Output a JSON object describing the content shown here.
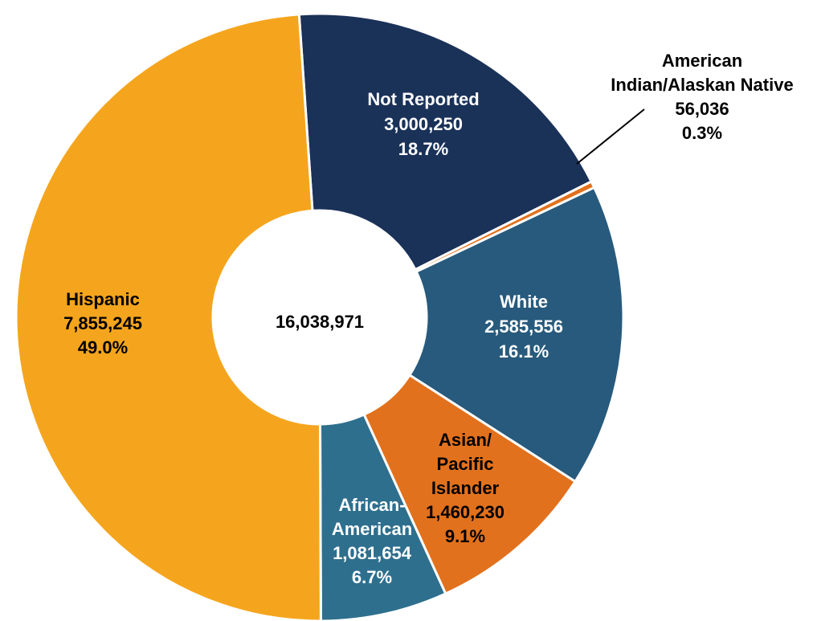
{
  "chart_data": {
    "type": "donut",
    "center_label": "16,038,971",
    "slices": [
      {
        "lines": [
          "Not Reported",
          "3,000,250",
          "18.7%"
        ],
        "value": 3000250,
        "percent": 18.7,
        "color": "#1a3158",
        "label_color": "#ffffff"
      },
      {
        "lines": [
          "American",
          "Indian/Alaskan Native",
          "56,036",
          "0.3%"
        ],
        "value": 56036,
        "percent": 0.3,
        "color": "#e2711d",
        "label_color": "#000000"
      },
      {
        "lines": [
          "White",
          "2,585,556",
          "16.1%"
        ],
        "value": 2585556,
        "percent": 16.1,
        "color": "#275a7c",
        "label_color": "#ffffff"
      },
      {
        "lines": [
          "Asian/",
          "Pacific",
          "Islander",
          "1,460,230",
          "9.1%"
        ],
        "value": 1460230,
        "percent": 9.1,
        "color": "#e2711d",
        "label_color": "#000000"
      },
      {
        "lines": [
          "African-",
          "American",
          "1,081,654",
          "6.7%"
        ],
        "value": 1081654,
        "percent": 6.7,
        "color": "#2e6f8e",
        "label_color": "#ffffff"
      },
      {
        "lines": [
          "Hispanic",
          "7,855,245",
          "49.0%"
        ],
        "value": 7855245,
        "percent": 49.0,
        "color": "#f5a51d",
        "label_color": "#000000"
      }
    ]
  }
}
